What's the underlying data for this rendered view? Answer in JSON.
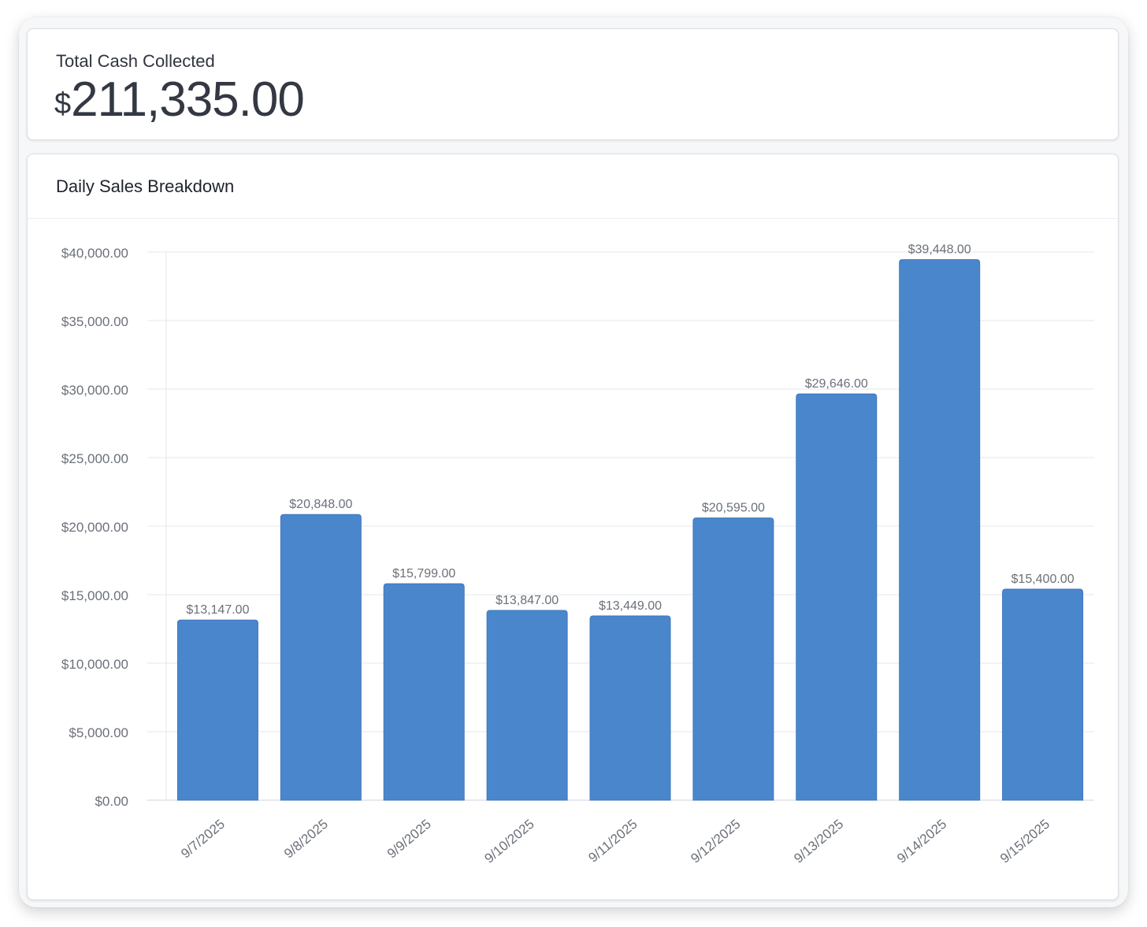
{
  "kpi": {
    "label": "Total Cash Collected",
    "currency_symbol": "$",
    "amount": "211,335.00"
  },
  "chart_card": {
    "title": "Daily Sales Breakdown"
  },
  "chart_data": {
    "type": "bar",
    "title": "Daily Sales Breakdown",
    "xlabel": "",
    "ylabel": "",
    "categories": [
      "9/7/2025",
      "9/8/2025",
      "9/9/2025",
      "9/10/2025",
      "9/11/2025",
      "9/12/2025",
      "9/13/2025",
      "9/14/2025",
      "9/15/2025"
    ],
    "values": [
      13147,
      20848,
      15799,
      13847,
      13449,
      20595,
      29646,
      39448,
      15400
    ],
    "value_labels": [
      "$13,147.00",
      "$20,848.00",
      "$15,799.00",
      "$13,847.00",
      "$13,449.00",
      "$20,595.00",
      "$29,646.00",
      "$39,448.00",
      "$15,400.00"
    ],
    "ylim": [
      0,
      40000
    ],
    "yticks": [
      0,
      5000,
      10000,
      15000,
      20000,
      25000,
      30000,
      35000,
      40000
    ],
    "ytick_labels": [
      "$0.00",
      "$5,000.00",
      "$10,000.00",
      "$15,000.00",
      "$20,000.00",
      "$25,000.00",
      "$30,000.00",
      "$35,000.00",
      "$40,000.00"
    ],
    "grid": true,
    "bar_color": "#4a86cc"
  }
}
